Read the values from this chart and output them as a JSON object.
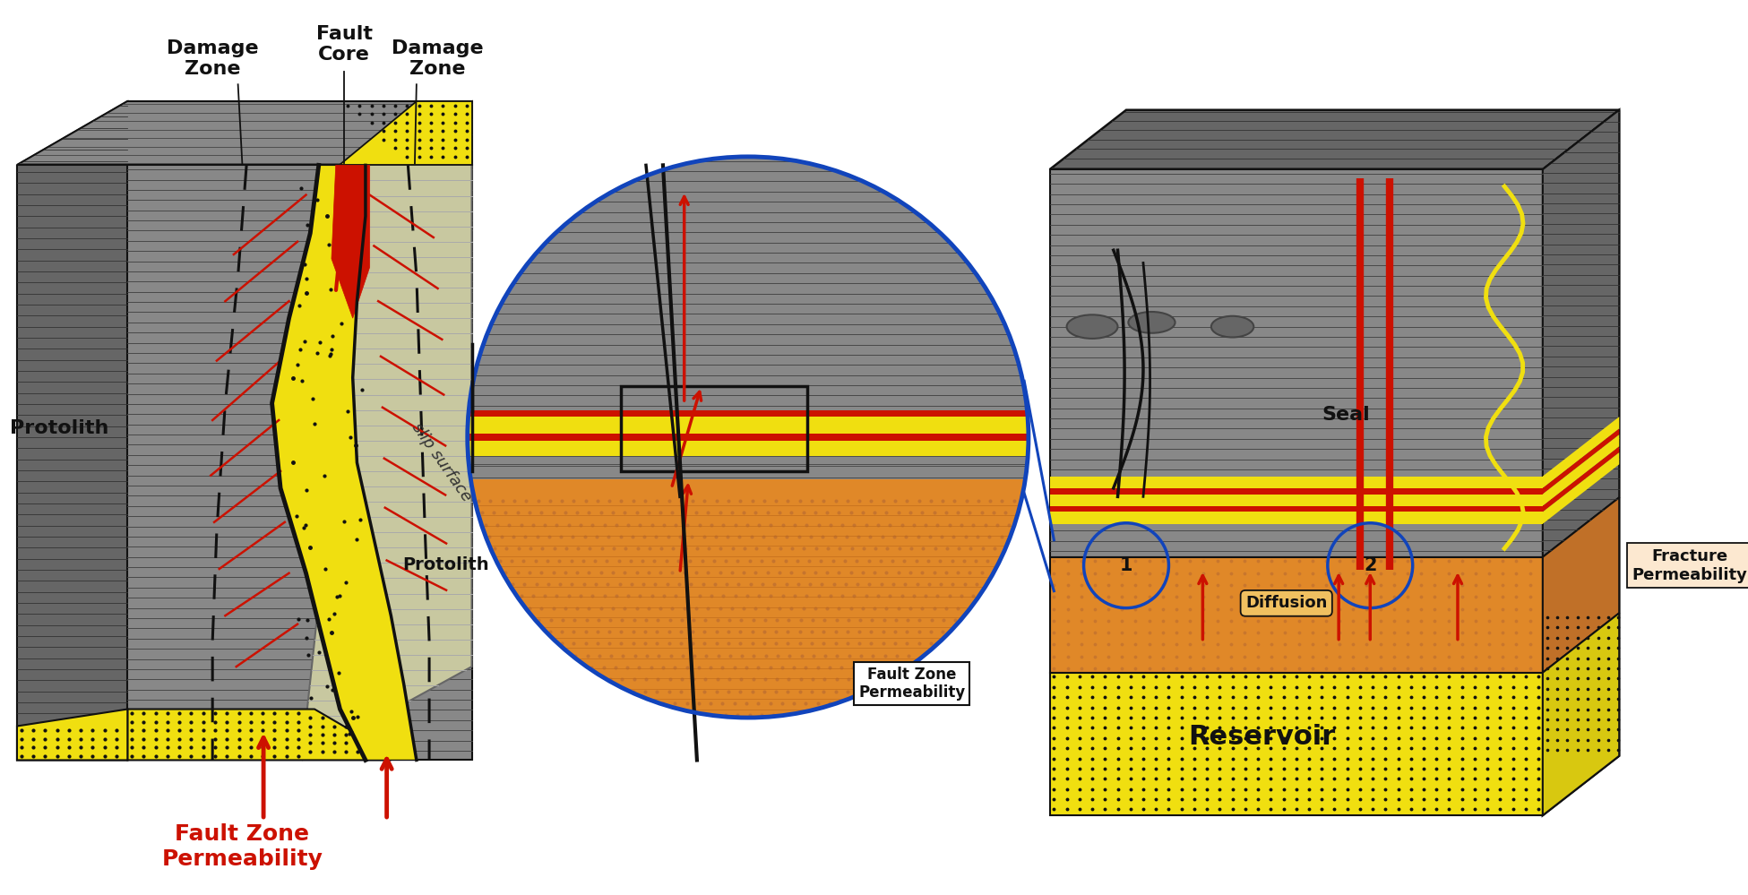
{
  "bg_color": "#ffffff",
  "gray_rock": "#888888",
  "gray_rock_dark": "#666666",
  "gray_rock_mid": "#777777",
  "light_slip": "#c8c8a0",
  "yellow_sand": "#f0df10",
  "orange_res": "#e08828",
  "red_fault": "#cc1100",
  "blue_circ": "#1144bb",
  "black": "#111111",
  "labels": {
    "damage_zone_left": "Damage\nZone",
    "fault_core": "Fault\nCore",
    "damage_zone_right": "Damage\nZone",
    "protolith": "Protolith",
    "protolith2": "Protolith",
    "slip_surface": "slip surface",
    "fault_zone_perm": "Fault Zone\nPermeability",
    "fault_zone_perm2": "Fault Zone\nPermeability",
    "fracture_perm": "Fracture\nPermeability",
    "seal": "Seal",
    "diffusion": "Diffusion",
    "reservoir": "Reservoir",
    "label1": "1",
    "label2": "2"
  }
}
